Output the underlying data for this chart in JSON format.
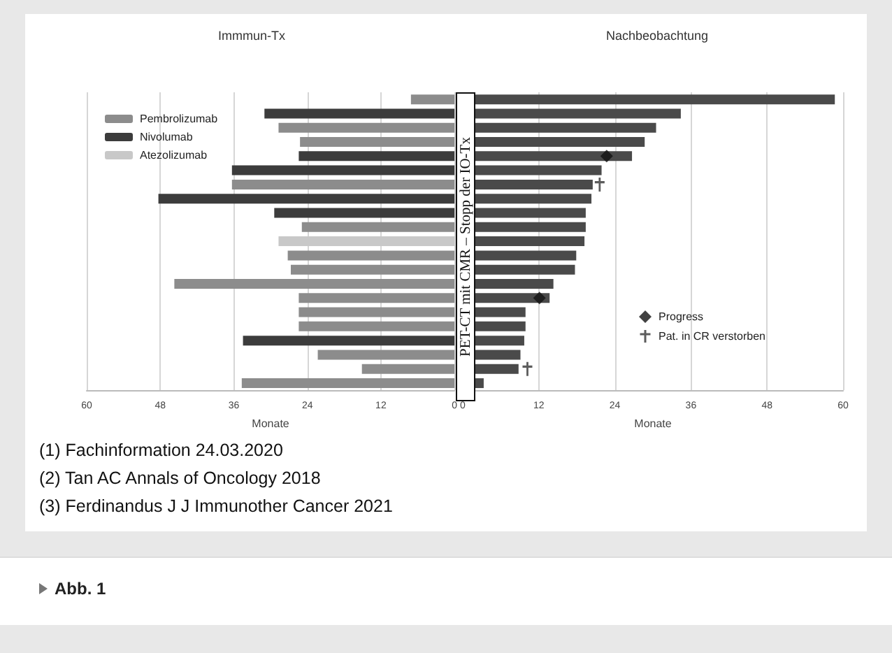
{
  "chart_data": [
    {
      "type": "bar",
      "orientation": "horizontal",
      "title": "Immmun-Tx",
      "xlabel": "Monate",
      "categories": [
        null,
        null,
        null,
        null,
        null,
        null,
        null,
        null,
        null,
        null,
        null,
        null,
        null,
        null,
        null,
        null,
        null,
        null,
        null,
        null,
        null
      ],
      "xlim": [
        60,
        0
      ],
      "xticks": [
        60,
        48,
        36,
        24,
        12,
        0
      ],
      "grid": "x",
      "tick_labels": "x",
      "legend": "top left",
      "series": [
        {
          "name": "Pembrolizumab",
          "color": "#8c8c8c",
          "values": [
            7.1,
            null,
            28.7,
            25.2,
            null,
            null,
            36.3,
            null,
            null,
            24.9,
            null,
            27.2,
            26.7,
            45.7,
            25.4,
            25.4,
            25.4,
            null,
            22.3,
            15.1,
            34.7
          ]
        },
        {
          "name": "Nivolumab",
          "color": "#3c3c3c",
          "values": [
            null,
            31.0,
            null,
            null,
            25.4,
            36.3,
            null,
            48.3,
            29.4,
            null,
            null,
            null,
            null,
            null,
            null,
            null,
            null,
            34.5,
            null,
            null,
            null
          ]
        },
        {
          "name": "Atezolizumab",
          "color": "#c8c8c8",
          "values": [
            null,
            null,
            null,
            null,
            null,
            null,
            null,
            null,
            null,
            null,
            28.7,
            null,
            null,
            null,
            null,
            null,
            null,
            null,
            null,
            null,
            null
          ]
        }
      ],
      "annotations": [
        "(1) Fachinformation 24.03.2020",
        "(2) Tan AC Annals of Oncology 2018",
        "(3) Ferdinandus J J Immunother Cancer 2021",
        "Abb. 1"
      ]
    },
    {
      "type": "bar",
      "orientation": "horizontal",
      "title": "Nachbeobachtung",
      "xlabel": "Monate",
      "categories": [
        null,
        null,
        null,
        null,
        null,
        null,
        null,
        null,
        null,
        null,
        null,
        null,
        null,
        null,
        null,
        null,
        null,
        null,
        null,
        null,
        null
      ],
      "xlim": [
        0,
        60
      ],
      "xticks": [
        0,
        12,
        24,
        36,
        48,
        60
      ],
      "grid": "x",
      "tick_labels": "x",
      "legend": "right",
      "series": [
        {
          "color": "#4a4a4a",
          "values": [
            58.7,
            34.4,
            30.5,
            28.7,
            26.7,
            21.9,
            20.5,
            20.3,
            19.4,
            19.4,
            19.2,
            17.9,
            17.7,
            14.3,
            13.7,
            9.9,
            9.9,
            9.7,
            9.1,
            8.8,
            3.3
          ]
        },
        {
          "name": "Progress",
          "type": "scatter",
          "marker": "diamond",
          "color": "#111111",
          "values": [
            null,
            null,
            null,
            null,
            22.7,
            null,
            null,
            null,
            null,
            null,
            null,
            null,
            null,
            null,
            12.1,
            null,
            null,
            null,
            null,
            null,
            null
          ]
        },
        {
          "name": "Pat. in CR verstorben",
          "type": "scatter",
          "marker": "cross",
          "color": "#333333",
          "values": [
            null,
            null,
            null,
            null,
            null,
            null,
            21.6,
            null,
            null,
            null,
            null,
            null,
            null,
            null,
            null,
            null,
            null,
            null,
            null,
            10.2,
            null
          ]
        }
      ],
      "annotations": [
        "PET-CT mit CMR – Stopp der IO-Tx"
      ]
    }
  ]
}
